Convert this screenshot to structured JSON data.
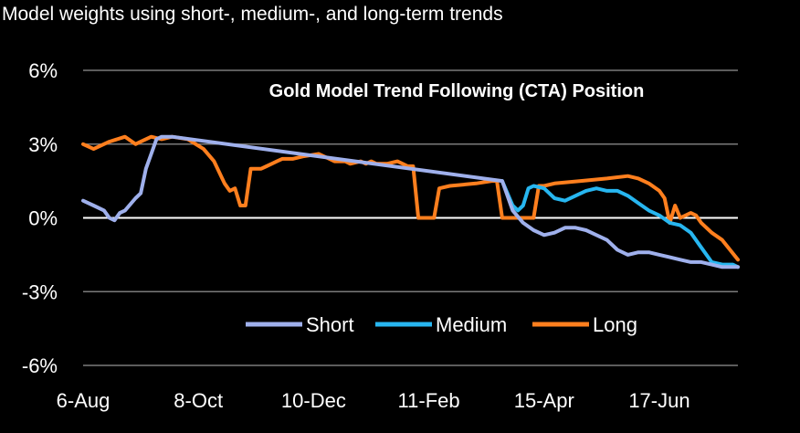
{
  "header": {
    "subtitle": "Model weights using short-, medium-, and long-term trends"
  },
  "chart_data": {
    "type": "line",
    "title": "Gold Model Trend Following (CTA) Position",
    "xlabel": "",
    "ylabel": "",
    "ylim": [
      -6,
      6
    ],
    "y_ticks": [
      6,
      3,
      0,
      -3,
      -6
    ],
    "y_tick_labels": [
      "6%",
      "3%",
      "0%",
      "-3%",
      "-6%"
    ],
    "x_ticks": [
      0,
      44,
      88,
      132,
      176,
      220
    ],
    "x_tick_labels": [
      "6-Aug",
      "8-Oct",
      "10-Dec",
      "11-Feb",
      "15-Apr",
      "17-Jun"
    ],
    "x_range": [
      0,
      250
    ],
    "grid": true,
    "legend_position": "bottom-center",
    "colors": {
      "Short": "#9fb0ec",
      "Medium": "#27b6f0",
      "Long": "#ff7f1e",
      "zero_line": "#ffffff",
      "grid": "#7a7a7a"
    },
    "series": [
      {
        "name": "Long",
        "x": [
          0,
          4,
          10,
          16,
          20,
          22,
          26,
          30,
          34,
          40,
          46,
          50,
          54,
          56,
          58,
          60,
          62,
          64,
          66,
          68,
          70,
          72,
          74,
          76,
          78,
          80,
          84,
          90,
          96,
          100,
          102,
          106,
          108,
          110,
          112,
          116,
          120,
          124,
          126,
          128,
          130,
          132,
          134,
          136,
          140,
          150,
          156,
          158,
          160,
          166,
          172,
          174,
          176,
          180,
          190,
          200,
          208,
          212,
          216,
          220,
          222,
          224,
          226,
          228,
          232,
          234,
          236,
          240,
          244,
          250
        ],
        "values": [
          3.0,
          2.8,
          3.1,
          3.3,
          3.0,
          3.1,
          3.3,
          3.2,
          3.3,
          3.2,
          2.8,
          2.3,
          1.4,
          1.1,
          1.2,
          0.5,
          0.5,
          2.0,
          2.0,
          2.0,
          2.1,
          2.2,
          2.3,
          2.4,
          2.4,
          2.4,
          2.5,
          2.6,
          2.3,
          2.3,
          2.2,
          2.3,
          2.2,
          2.3,
          2.2,
          2.2,
          2.3,
          2.1,
          2.1,
          0.0,
          0.0,
          0.0,
          0.0,
          1.2,
          1.3,
          1.4,
          1.5,
          1.5,
          0.0,
          0.0,
          0.0,
          1.3,
          1.3,
          1.4,
          1.5,
          1.6,
          1.7,
          1.6,
          1.4,
          1.1,
          0.8,
          -0.2,
          0.5,
          0.0,
          0.2,
          0.1,
          -0.2,
          -0.6,
          -0.9,
          -1.7
        ]
      },
      {
        "name": "Medium",
        "x": [
          160,
          164,
          166,
          168,
          170,
          172,
          176,
          180,
          184,
          188,
          192,
          196,
          200,
          204,
          208,
          212,
          216,
          220,
          224,
          228,
          232,
          236,
          240,
          244,
          248,
          250
        ],
        "values": [
          1.5,
          0.5,
          0.3,
          0.5,
          1.2,
          1.3,
          1.2,
          0.8,
          0.7,
          0.9,
          1.1,
          1.2,
          1.1,
          1.1,
          0.9,
          0.6,
          0.3,
          0.1,
          -0.2,
          -0.3,
          -0.6,
          -1.2,
          -1.8,
          -1.9,
          -1.9,
          -2.0
        ]
      },
      {
        "name": "Short",
        "x": [
          0,
          4,
          8,
          10,
          12,
          14,
          16,
          20,
          22,
          24,
          26,
          28,
          30,
          32,
          34,
          160,
          164,
          168,
          172,
          176,
          180,
          184,
          188,
          192,
          196,
          200,
          204,
          208,
          212,
          216,
          220,
          224,
          228,
          232,
          236,
          240,
          244,
          248,
          250
        ],
        "values": [
          0.7,
          0.5,
          0.3,
          0.0,
          -0.1,
          0.2,
          0.3,
          0.8,
          1.0,
          2.0,
          2.6,
          3.2,
          3.3,
          3.3,
          3.3,
          1.5,
          0.3,
          -0.2,
          -0.5,
          -0.7,
          -0.6,
          -0.4,
          -0.4,
          -0.5,
          -0.7,
          -0.9,
          -1.3,
          -1.5,
          -1.4,
          -1.4,
          -1.5,
          -1.6,
          -1.7,
          -1.8,
          -1.8,
          -1.9,
          -2.0,
          -2.0,
          -2.0
        ]
      }
    ]
  }
}
